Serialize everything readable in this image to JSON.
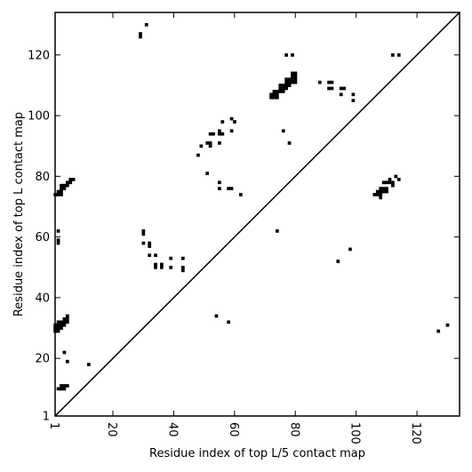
{
  "chart_data": {
    "type": "scatter",
    "xlabel": "Residue index of top L/5 contact map",
    "ylabel": "Residue index of top L contact map",
    "xlim": [
      1,
      134
    ],
    "ylim": [
      1,
      134
    ],
    "x_ticks": [
      1,
      20,
      40,
      60,
      80,
      100,
      120
    ],
    "y_ticks": [
      1,
      20,
      40,
      60,
      80,
      100,
      120
    ],
    "grid": false,
    "diagonal": true,
    "marker_color": "#000000",
    "points": [
      [
        29,
        126
      ],
      [
        29,
        127
      ],
      [
        31,
        130
      ],
      [
        77,
        120
      ],
      [
        79,
        120
      ],
      [
        112,
        120
      ],
      [
        114,
        120
      ],
      [
        72,
        106
      ],
      [
        72,
        107
      ],
      [
        73,
        106
      ],
      [
        73,
        107
      ],
      [
        74,
        106
      ],
      [
        74,
        107
      ],
      [
        74,
        108
      ],
      [
        73,
        108
      ],
      [
        75,
        108
      ],
      [
        75,
        109
      ],
      [
        76,
        108
      ],
      [
        76,
        109
      ],
      [
        76,
        110
      ],
      [
        75,
        110
      ],
      [
        77,
        109
      ],
      [
        77,
        110
      ],
      [
        77,
        111
      ],
      [
        78,
        110
      ],
      [
        78,
        111
      ],
      [
        78,
        112
      ],
      [
        77,
        112
      ],
      [
        79,
        111
      ],
      [
        79,
        112
      ],
      [
        79,
        113
      ],
      [
        80,
        112
      ],
      [
        80,
        113
      ],
      [
        80,
        114
      ],
      [
        79,
        114
      ],
      [
        80,
        111
      ],
      [
        88,
        111
      ],
      [
        91,
        109
      ],
      [
        91,
        111
      ],
      [
        92,
        109
      ],
      [
        92,
        111
      ],
      [
        95,
        107
      ],
      [
        95,
        109
      ],
      [
        96,
        109
      ],
      [
        99,
        105
      ],
      [
        99,
        107
      ],
      [
        59,
        99
      ],
      [
        60,
        98
      ],
      [
        56,
        98
      ],
      [
        59,
        95
      ],
      [
        76,
        95
      ],
      [
        78,
        91
      ],
      [
        52,
        94
      ],
      [
        53,
        94
      ],
      [
        55,
        94
      ],
      [
        56,
        94
      ],
      [
        55,
        95
      ],
      [
        49,
        90
      ],
      [
        51,
        91
      ],
      [
        52,
        90
      ],
      [
        52,
        91
      ],
      [
        55,
        91
      ],
      [
        48,
        87
      ],
      [
        51,
        81
      ],
      [
        55,
        78
      ],
      [
        55,
        76
      ],
      [
        58,
        76
      ],
      [
        59,
        76
      ],
      [
        62,
        74
      ],
      [
        1,
        74
      ],
      [
        2,
        74
      ],
      [
        2,
        75
      ],
      [
        3,
        74
      ],
      [
        3,
        75
      ],
      [
        3,
        76
      ],
      [
        3,
        77
      ],
      [
        4,
        76
      ],
      [
        4,
        77
      ],
      [
        5,
        77
      ],
      [
        5,
        78
      ],
      [
        6,
        78
      ],
      [
        6,
        79
      ],
      [
        7,
        79
      ],
      [
        106,
        74
      ],
      [
        107,
        74
      ],
      [
        107,
        75
      ],
      [
        108,
        73
      ],
      [
        108,
        74
      ],
      [
        108,
        75
      ],
      [
        108,
        76
      ],
      [
        109,
        75
      ],
      [
        109,
        76
      ],
      [
        109,
        78
      ],
      [
        110,
        75
      ],
      [
        110,
        76
      ],
      [
        110,
        78
      ],
      [
        111,
        78
      ],
      [
        111,
        79
      ],
      [
        112,
        78
      ],
      [
        112,
        77
      ],
      [
        113,
        80
      ],
      [
        114,
        79
      ],
      [
        2,
        62
      ],
      [
        2,
        58
      ],
      [
        2,
        59
      ],
      [
        30,
        61
      ],
      [
        30,
        62
      ],
      [
        30,
        58
      ],
      [
        32,
        57
      ],
      [
        32,
        58
      ],
      [
        32,
        54
      ],
      [
        34,
        54
      ],
      [
        34,
        50
      ],
      [
        34,
        51
      ],
      [
        36,
        50
      ],
      [
        36,
        51
      ],
      [
        39,
        53
      ],
      [
        39,
        50
      ],
      [
        43,
        53
      ],
      [
        43,
        49
      ],
      [
        43,
        50
      ],
      [
        74,
        62
      ],
      [
        98,
        56
      ],
      [
        94,
        52
      ],
      [
        54,
        34
      ],
      [
        58,
        32
      ],
      [
        1,
        29
      ],
      [
        1,
        30
      ],
      [
        1,
        31
      ],
      [
        2,
        29
      ],
      [
        2,
        30
      ],
      [
        2,
        31
      ],
      [
        2,
        32
      ],
      [
        3,
        30
      ],
      [
        3,
        31
      ],
      [
        3,
        32
      ],
      [
        4,
        31
      ],
      [
        4,
        32
      ],
      [
        4,
        33
      ],
      [
        5,
        32
      ],
      [
        5,
        33
      ],
      [
        5,
        34
      ],
      [
        4,
        22
      ],
      [
        5,
        19
      ],
      [
        12,
        18
      ],
      [
        2,
        10
      ],
      [
        3,
        10
      ],
      [
        3,
        11
      ],
      [
        4,
        10
      ],
      [
        4,
        11
      ],
      [
        5,
        11
      ],
      [
        130,
        31
      ],
      [
        127,
        29
      ]
    ]
  }
}
